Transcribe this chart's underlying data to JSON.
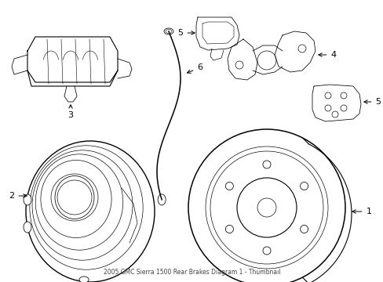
{
  "bg_color": "#ffffff",
  "line_color": "#000000",
  "lw": 0.8,
  "fig_width": 4.89,
  "fig_height": 3.6,
  "dpi": 100
}
